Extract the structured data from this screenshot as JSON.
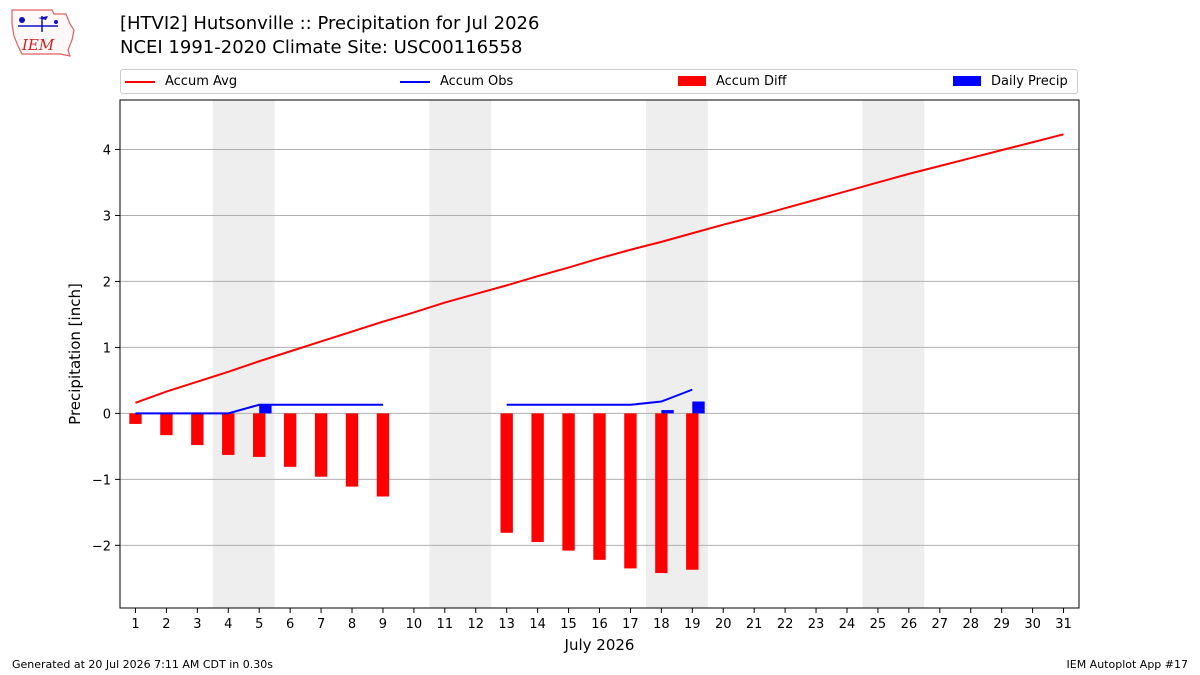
{
  "header": {
    "title_line1": "[HTVI2] Hutsonville :: Precipitation for Jul 2026",
    "title_line2": "NCEI 1991-2020 Climate Site: USC00116558",
    "logo_text": "IEM"
  },
  "footer": {
    "generated": "Generated at 20 Jul 2026 7:11 AM CDT in 0.30s",
    "app": "IEM Autoplot App #17"
  },
  "chart_data": {
    "type": "bar",
    "xlabel": "July 2026",
    "ylabel": "Precipitation [inch]",
    "xlim": [
      0.5,
      31.5
    ],
    "ylim": [
      -2.95,
      4.75
    ],
    "y_ticks": [
      4,
      3,
      2,
      1,
      0,
      -1,
      -2
    ],
    "y_tick_labels": [
      "4",
      "3",
      "2",
      "1",
      "0",
      "−1",
      "−2"
    ],
    "x_ticks": [
      1,
      2,
      3,
      4,
      5,
      6,
      7,
      8,
      9,
      10,
      11,
      12,
      13,
      14,
      15,
      16,
      17,
      18,
      19,
      20,
      21,
      22,
      23,
      24,
      25,
      26,
      27,
      28,
      29,
      30,
      31
    ],
    "grid": "y",
    "legend_position": "top",
    "weekend_shading": [
      [
        3.5,
        5.5
      ],
      [
        10.5,
        12.5
      ],
      [
        17.5,
        19.5
      ],
      [
        24.5,
        26.5
      ]
    ],
    "series": [
      {
        "name": "Accum Avg",
        "type": "line",
        "color": "#ff0000",
        "x": [
          1,
          2,
          3,
          4,
          5,
          6,
          7,
          8,
          9,
          10,
          11,
          12,
          13,
          14,
          15,
          16,
          17,
          18,
          19,
          20,
          21,
          22,
          23,
          24,
          25,
          26,
          27,
          28,
          29,
          30,
          31
        ],
        "values": [
          0.16,
          0.33,
          0.48,
          0.63,
          0.79,
          0.94,
          1.09,
          1.24,
          1.39,
          1.53,
          1.68,
          1.81,
          1.94,
          2.08,
          2.21,
          2.35,
          2.48,
          2.6,
          2.73,
          2.86,
          2.98,
          3.11,
          3.24,
          3.37,
          3.5,
          3.63,
          3.75,
          3.87,
          3.99,
          4.11,
          4.23
        ]
      },
      {
        "name": "Accum Obs",
        "type": "line",
        "color": "#0000ff",
        "segments": [
          {
            "x": [
              1,
              2,
              3,
              4,
              5,
              6,
              7,
              8,
              9
            ],
            "values": [
              0.0,
              0.0,
              0.0,
              0.0,
              0.13,
              0.13,
              0.13,
              0.13,
              0.13
            ]
          },
          {
            "x": [
              13,
              14,
              15,
              16,
              17,
              18,
              19
            ],
            "values": [
              0.13,
              0.13,
              0.13,
              0.13,
              0.13,
              0.18,
              0.36
            ]
          }
        ]
      },
      {
        "name": "Accum Diff",
        "type": "bar",
        "color": "#ff0000",
        "x": [
          1,
          2,
          3,
          4,
          5,
          6,
          7,
          8,
          9,
          13,
          14,
          15,
          16,
          17,
          18,
          19
        ],
        "values": [
          -0.16,
          -0.33,
          -0.48,
          -0.63,
          -0.66,
          -0.81,
          -0.96,
          -1.11,
          -1.26,
          -1.81,
          -1.95,
          -2.08,
          -2.22,
          -2.35,
          -2.42,
          -2.37
        ]
      },
      {
        "name": "Daily Precip",
        "type": "bar",
        "color": "#0000ff",
        "x": [
          5,
          18,
          19
        ],
        "values": [
          0.13,
          0.05,
          0.18
        ]
      }
    ]
  }
}
